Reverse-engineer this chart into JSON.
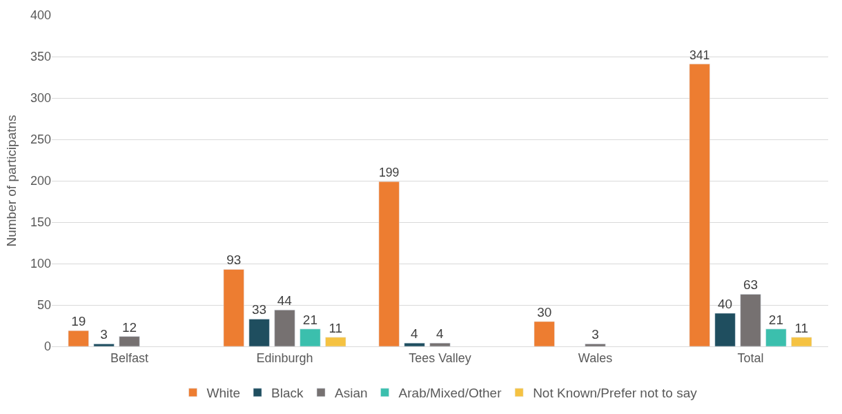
{
  "chart_data": {
    "type": "bar",
    "ylabel": "Number of participatns",
    "categories": [
      "Belfast",
      "Edinburgh",
      "Tees Valley",
      "Wales",
      "Total"
    ],
    "series": [
      {
        "name": "White",
        "color": "#ed7d31",
        "values": [
          19,
          93,
          199,
          30,
          341
        ]
      },
      {
        "name": "Black",
        "color": "#1f4e5f",
        "values": [
          3,
          33,
          4,
          null,
          40
        ]
      },
      {
        "name": "Asian",
        "color": "#767171",
        "values": [
          12,
          44,
          4,
          3,
          63
        ]
      },
      {
        "name": "Arab/Mixed/Other",
        "color": "#3bbfad",
        "values": [
          null,
          21,
          null,
          null,
          21
        ]
      },
      {
        "name": "Not Known/Prefer not to say",
        "color": "#f5c242",
        "values": [
          null,
          11,
          null,
          null,
          11
        ]
      }
    ],
    "ylim": [
      0,
      400
    ],
    "yticks": [
      0,
      50,
      100,
      150,
      200,
      250,
      300,
      350,
      400
    ],
    "grid": "y",
    "legend": "bottom",
    "data_labels": true
  }
}
